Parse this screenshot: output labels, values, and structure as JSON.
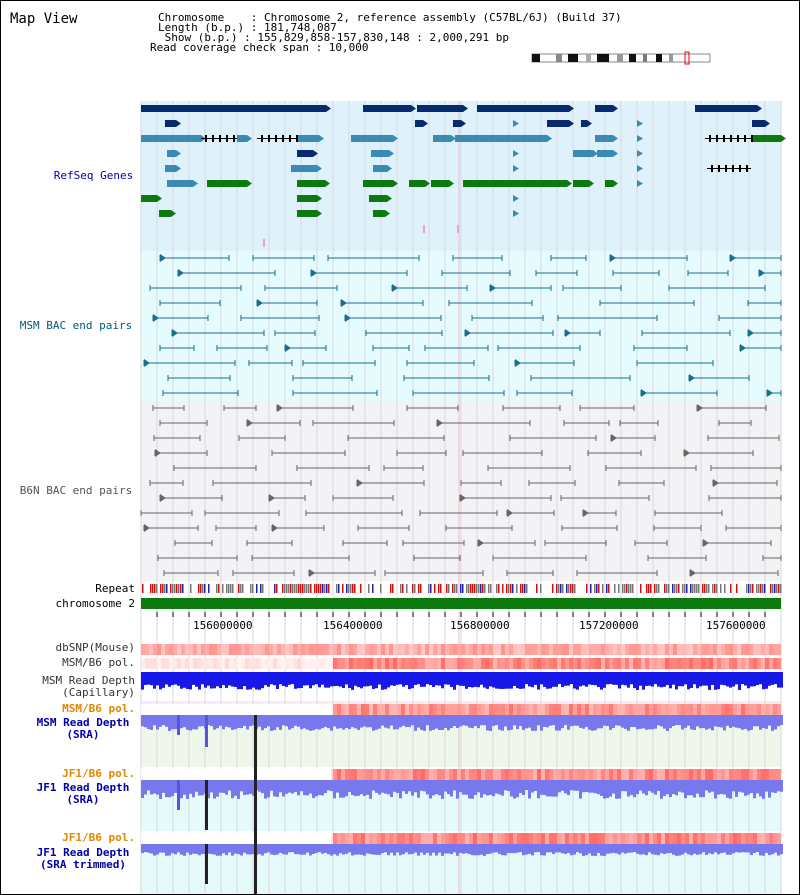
{
  "view_title": "Map View",
  "info": {
    "chromosome_line": "Chromosome    : Chromosome 2, reference assembly (C57BL/6J) (Build 37)",
    "length_line": "Length (b.p.) : 181,748,087",
    "show_line": " Show (b.p.) : 155,829,858-157,830,148 : 2,000,291 bp",
    "span_line": "Read coverage check span : 10,000"
  },
  "tracks": {
    "refseq": "RefSeq Genes",
    "msm_bac": "MSM BAC end pairs",
    "b6n_bac": "B6N BAC end pairs",
    "repeat": "Repeat",
    "chromosome": "chromosome 2",
    "dbsnp": "dbSNP(Mouse)",
    "msm_pol": "MSM/B6 pol.",
    "msm_depth_cap": "MSM Read Depth\n(Capillary)",
    "msm_pol2": "MSM/B6 pol.",
    "msm_depth_sra": "MSM Read Depth\n(SRA)",
    "jf1_pol": "JF1/B6 pol.",
    "jf1_depth_sra": "JF1 Read Depth\n(SRA)",
    "jf1_pol2": "JF1/B6 pol.",
    "jf1_depth_trim": "JF1 Read Depth\n(SRA trimmed)"
  },
  "ruler": {
    "ticks": [
      "156000000",
      "156400000",
      "156800000",
      "157200000",
      "157600000"
    ]
  },
  "colors": {
    "refseq_bg": "#dff1fb",
    "msm_bg": "#e6fbfd",
    "b6n_bg": "#f3f3f5",
    "chromosome_bar": "#0c7a0c",
    "navy_gene": "#062a6e",
    "teal_gene": "#3a8ab3",
    "green_gene": "#0d7a0d",
    "pol_red": "#f07070",
    "depth_blue": "#1818e8",
    "sra_blue": "#7777ee",
    "label_blue": "#0000aa",
    "label_teal": "#005a7a",
    "label_orange": "#e08800"
  }
}
